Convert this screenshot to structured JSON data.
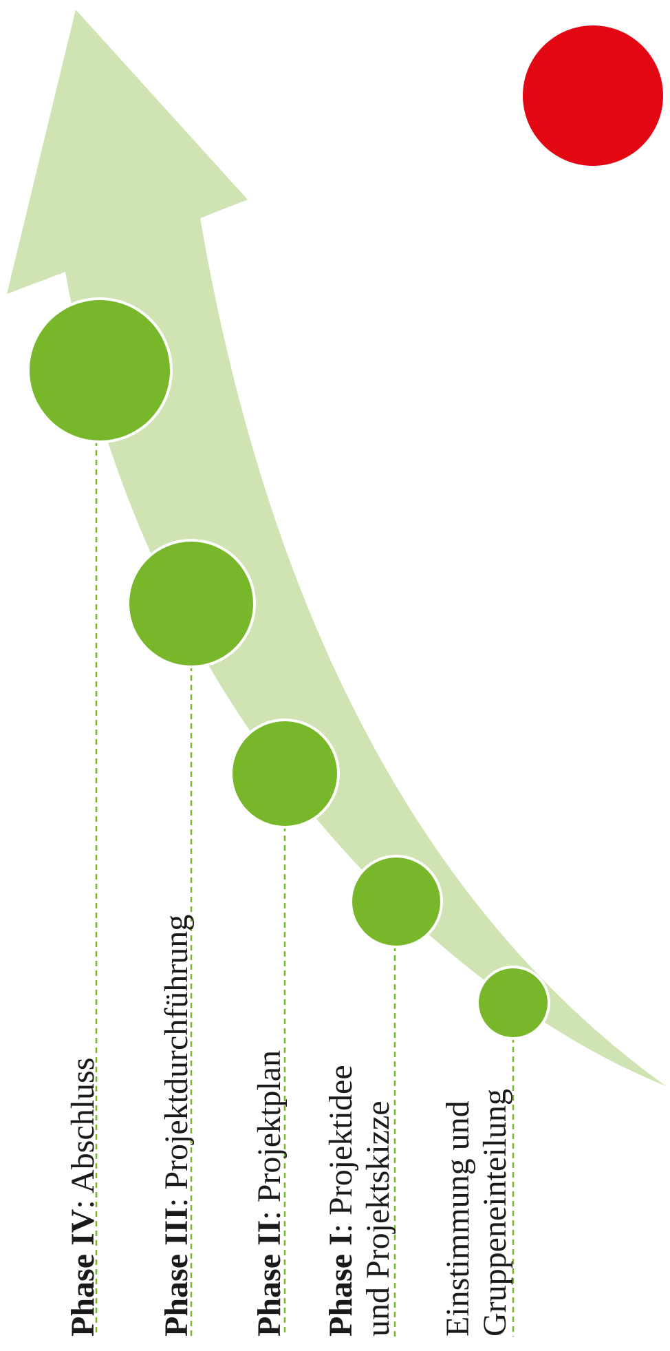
{
  "colors": {
    "arrow": "#d0e3b3",
    "node": "#79b72a",
    "node_ring": "#ffffff",
    "dash": "#79b72a",
    "accent_dot": "#e30613",
    "text": "#1a1a1a"
  },
  "phases": [
    {
      "bold": "Phase IV",
      "rest": ": Abschluss",
      "line2": ""
    },
    {
      "bold": "Phase III",
      "rest": ": Projektdurchführung",
      "line2": ""
    },
    {
      "bold": "Phase II",
      "rest": ": Projektplan",
      "line2": ""
    },
    {
      "bold": "Phase I",
      "rest": ": Projektidee",
      "line2": "und Projektskizze"
    },
    {
      "bold": "",
      "rest": "Einstimmung und",
      "line2": "Gruppeneinteilung"
    }
  ]
}
